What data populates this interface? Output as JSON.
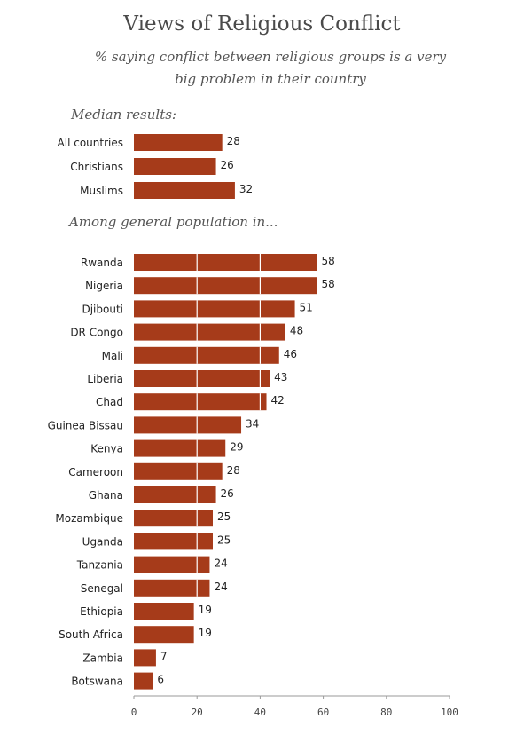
{
  "chart_data": {
    "type": "bar",
    "title": "Views of Religious Conflict",
    "subtitle": "% saying conflict between religious groups is a very big problem in their country",
    "bar_color": "#a63b1a",
    "xlim": [
      0,
      100
    ],
    "xticks": [
      "0",
      "20",
      "40",
      "60",
      "80",
      "100"
    ],
    "groups": [
      {
        "label": "Median results:",
        "categories": [
          "All countries",
          "Christians",
          "Muslims"
        ],
        "values": [
          28,
          26,
          32
        ]
      },
      {
        "label": "Among general population in...",
        "categories": [
          "Rwanda",
          "Nigeria",
          "Djibouti",
          "DR Congo",
          "Mali",
          "Liberia",
          "Chad",
          "Guinea Bissau",
          "Kenya",
          "Cameroon",
          "Ghana",
          "Mozambique",
          "Uganda",
          "Tanzania",
          "Senegal",
          "Ethiopia",
          "South Africa",
          "Zambia",
          "Botswana"
        ],
        "values": [
          58,
          58,
          51,
          48,
          46,
          43,
          42,
          34,
          29,
          28,
          26,
          25,
          25,
          24,
          24,
          19,
          19,
          7,
          6
        ]
      }
    ]
  }
}
